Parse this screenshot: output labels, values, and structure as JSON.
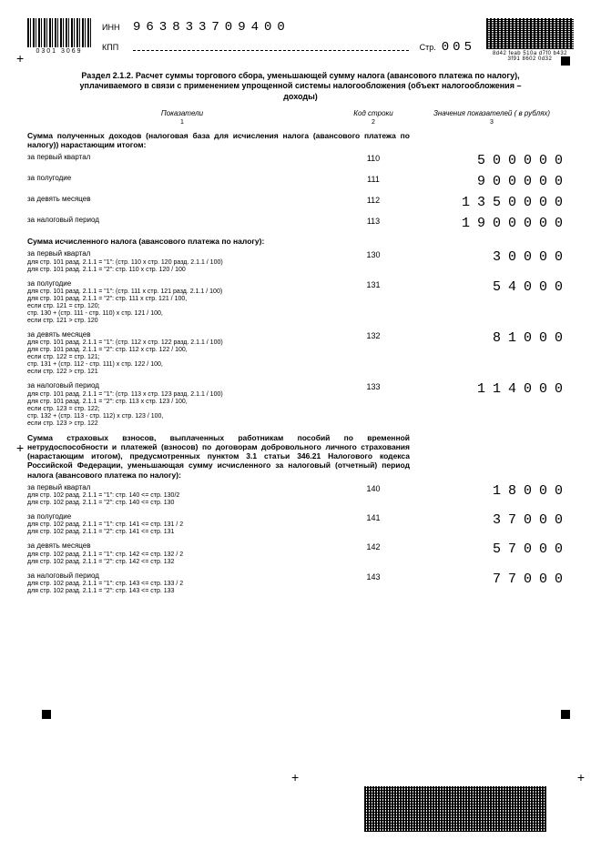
{
  "header": {
    "inn_label": "ИНН",
    "inn_value": "963833709400",
    "kpp_label": "КПП",
    "page_label": "Стр.",
    "page_value": "005",
    "linear_barcode_sub": "0301 3069",
    "pdf417_sub": "8d42 feab 510a d7f0 b432 3f91 8602 0d32"
  },
  "section_title": "Раздел 2.1.2. Расчет суммы торгового сбора, уменьшающей сумму налога (авансового платежа по налогу), уплачиваемого в связи с применением упрощенной системы налогообложения (объект налогообложения – доходы)",
  "column_headers": {
    "c1": "Показатели",
    "c2": "Код строки",
    "c3": "Значения показателей ( в рублях)",
    "n1": "1",
    "n2": "2",
    "n3": "3"
  },
  "group1": {
    "header": "Сумма полученных доходов (налоговая база для исчисления налога (авансового платежа по налогу)) нарастающим итогом:",
    "rows": [
      {
        "desc": "за первый квартал",
        "code": "110",
        "value": "500000"
      },
      {
        "desc": "за полугодие",
        "code": "111",
        "value": "900000"
      },
      {
        "desc": "за девять месяцев",
        "code": "112",
        "value": "1350000"
      },
      {
        "desc": "за налоговый период",
        "code": "113",
        "value": "1900000"
      }
    ]
  },
  "group2": {
    "header": "Сумма исчисленного налога (авансового платежа по налогу):",
    "rows": [
      {
        "desc": "за первый квартал",
        "sub1": "для стр. 101 разд. 2.1.1 = \"1\": (стр. 110 x стр. 120 разд. 2.1.1 / 100)",
        "sub2": "для стр. 101 разд. 2.1.1 = \"2\": стр. 110 x стр. 120 / 100",
        "code": "130",
        "value": "30000"
      },
      {
        "desc": "за полугодие",
        "sub1": "для стр. 101 разд. 2.1.1 = \"1\": (стр. 111 x стр. 121 разд. 2.1.1 / 100)",
        "sub2": "для стр. 101 разд. 2.1.1 = \"2\": стр. 111 x стр. 121 / 100,",
        "sub3": "если стр. 121 = стр. 120;",
        "sub4": "стр. 130 + (стр. 111 - стр. 110) x стр. 121 / 100,",
        "sub5": "если стр. 121 > стр. 120",
        "code": "131",
        "value": "54000"
      },
      {
        "desc": "за девять месяцев",
        "sub1": "для стр. 101 разд. 2.1.1 = \"1\": (стр. 112 x стр. 122 разд. 2.1.1 / 100)",
        "sub2": "для стр. 101 разд. 2.1.1 = \"2\": стр. 112 x стр. 122 / 100,",
        "sub3": "если стр. 122 = стр. 121;",
        "sub4": "стр. 131 + (стр. 112 - стр. 111) x стр. 122 / 100,",
        "sub5": "если стр. 122 > стр. 121",
        "code": "132",
        "value": "81000"
      },
      {
        "desc": "за налоговый период",
        "sub1": "для стр. 101 разд. 2.1.1 = \"1\": (стр. 113 x стр. 123 разд. 2.1.1 / 100)",
        "sub2": "для стр. 101 разд. 2.1.1 = \"2\": стр. 113 x стр. 123 / 100,",
        "sub3": "если стр. 123 = стр. 122;",
        "sub4": "стр. 132 + (стр. 113 - стр. 112) x стр. 123 / 100,",
        "sub5": "если стр. 123 > стр. 122",
        "code": "133",
        "value": "114000"
      }
    ]
  },
  "group3": {
    "header": "Сумма страховых взносов, выплаченных работникам пособий по временной нетрудоспособности и платежей (взносов) по договорам добровольного личного страхования (нарастающим итогом), предусмотренных пунктом 3.1 статьи 346.21 Налогового кодекса Российской Федерации, уменьшающая сумму исчисленного за налоговый (отчетный) период налога (авансового платежа по налогу):",
    "rows": [
      {
        "desc": "за первый квартал",
        "sub1": "для стр. 102 разд. 2.1.1 = \"1\": стр. 140 <= стр. 130/2",
        "sub2": "для стр. 102 разд. 2.1.1 = \"2\": стр. 140 <= стр. 130",
        "code": "140",
        "value": "18000"
      },
      {
        "desc": "за полугодие",
        "sub1": "для стр. 102 разд. 2.1.1 = \"1\": стр. 141 <= стр. 131 / 2",
        "sub2": "для стр. 102 разд. 2.1.1 = \"2\": стр. 141 <= стр. 131",
        "code": "141",
        "value": "37000"
      },
      {
        "desc": "за девять месяцев",
        "sub1": "для стр. 102 разд. 2.1.1 = \"1\": стр. 142 <= стр. 132 / 2",
        "sub2": "для стр. 102 разд. 2.1.1 = \"2\": стр. 142 <= стр. 132",
        "code": "142",
        "value": "57000"
      },
      {
        "desc": "за налоговый период",
        "sub1": "для стр. 102 разд. 2.1.1 = \"1\": стр. 143 <= стр. 133 / 2",
        "sub2": "для стр. 102 разд. 2.1.1 = \"2\": стр. 143 <= стр. 133",
        "code": "143",
        "value": "77000"
      }
    ]
  }
}
